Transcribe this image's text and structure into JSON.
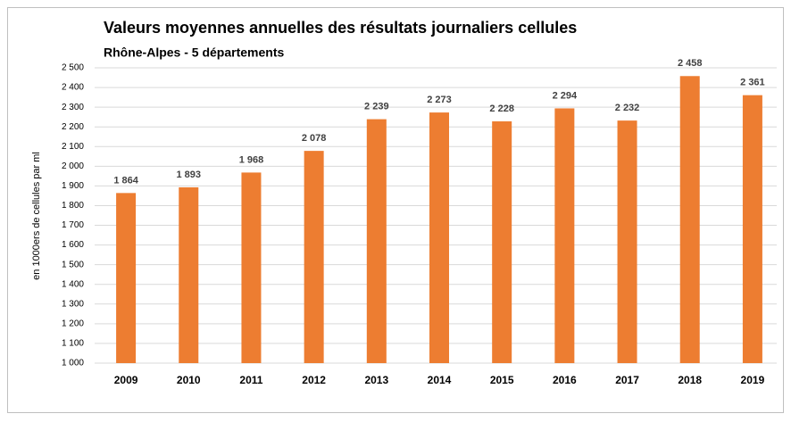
{
  "chart_data": {
    "type": "bar",
    "title": "Valeurs moyennes annuelles des résultats journaliers cellules",
    "subtitle": "Rhône-Alpes - 5 départements",
    "y_label": "en 1000ers de cellules par ml",
    "categories": [
      "2009",
      "2010",
      "2011",
      "2012",
      "2013",
      "2014",
      "2015",
      "2016",
      "2017",
      "2018",
      "2019"
    ],
    "values": [
      1864,
      1893,
      1968,
      2078,
      2239,
      2273,
      2228,
      2294,
      2232,
      2458,
      2361
    ],
    "value_labels": [
      "1 864",
      "1 893",
      "1 968",
      "2 078",
      "2 239",
      "2 273",
      "2 228",
      "2 294",
      "2 232",
      "2 458",
      "2 361"
    ],
    "color": "#ed7d31",
    "ylim": [
      1000,
      2500
    ],
    "yticks": [
      {
        "value": 1000,
        "label": "1 000"
      },
      {
        "value": 1100,
        "label": "1 100"
      },
      {
        "value": 1200,
        "label": "1 200"
      },
      {
        "value": 1300,
        "label": "1 300"
      },
      {
        "value": 1400,
        "label": "1 400"
      },
      {
        "value": 1500,
        "label": "1 500"
      },
      {
        "value": 1600,
        "label": "1 600"
      },
      {
        "value": 1700,
        "label": "1 700"
      },
      {
        "value": 1800,
        "label": "1 800"
      },
      {
        "value": 1900,
        "label": "1 900"
      },
      {
        "value": 2000,
        "label": "2 000"
      },
      {
        "value": 2100,
        "label": "2 100"
      },
      {
        "value": 2200,
        "label": "2 200"
      },
      {
        "value": 2300,
        "label": "2 300"
      },
      {
        "value": 2400,
        "label": "2 400"
      },
      {
        "value": 2500,
        "label": "2 500"
      }
    ],
    "grid": true
  }
}
